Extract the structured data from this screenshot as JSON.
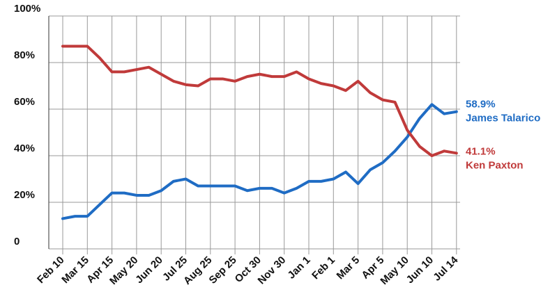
{
  "chart_data": {
    "type": "line",
    "categories": [
      "Feb 10",
      null,
      "Mar 15",
      null,
      "Apr 15",
      null,
      "May 20",
      null,
      "Jun 20",
      null,
      "Jul 25",
      null,
      "Aug 25",
      null,
      "Sep 25",
      null,
      "Oct 30",
      null,
      "Nov 30",
      null,
      "Jan 1",
      null,
      "Feb 1",
      null,
      "Mar 5",
      null,
      "Apr 5",
      null,
      "May 10",
      null,
      "Jun 10",
      null,
      "Jul 14"
    ],
    "series": [
      {
        "name": "James Talarico",
        "color": "#1f6cc4",
        "values": [
          13,
          14,
          14,
          19,
          24,
          24,
          23,
          23,
          25,
          29,
          30,
          27,
          27,
          27,
          27,
          25,
          26,
          26,
          24,
          26,
          29,
          29,
          30,
          33,
          28,
          34,
          37,
          42,
          48,
          56,
          62,
          58,
          58.9
        ],
        "value_labels": [
          null,
          null,
          null,
          null,
          null,
          null,
          null,
          null,
          null,
          null,
          null,
          null,
          null,
          null,
          null,
          null,
          null,
          null,
          null,
          null,
          null,
          null,
          null,
          null,
          null,
          null,
          null,
          null,
          null,
          null,
          null,
          null,
          "58.9%"
        ]
      },
      {
        "name": "Ken Paxton",
        "color": "#c03a3a",
        "values": [
          87,
          87,
          87,
          82,
          76,
          76,
          77,
          78,
          75,
          72,
          70.5,
          70,
          73,
          73,
          72,
          74,
          75,
          74,
          74,
          76,
          73,
          71,
          70,
          68,
          72,
          67,
          64,
          63,
          51,
          44,
          40,
          42,
          41.1
        ],
        "value_labels": [
          null,
          null,
          null,
          null,
          null,
          null,
          null,
          null,
          null,
          null,
          null,
          null,
          null,
          null,
          null,
          null,
          null,
          null,
          null,
          null,
          null,
          null,
          null,
          null,
          null,
          null,
          null,
          null,
          null,
          null,
          null,
          null,
          "41.1%"
        ]
      }
    ],
    "ylim": [
      0,
      100
    ],
    "yticks": [
      0,
      {
        "value": 20,
        "label": "20%"
      },
      {
        "value": 40,
        "label": "40%"
      },
      {
        "value": 60,
        "label": "60%"
      },
      {
        "value": 80,
        "label": "80%"
      },
      {
        "value": 100,
        "label": "100%"
      }
    ],
    "grid": true
  }
}
